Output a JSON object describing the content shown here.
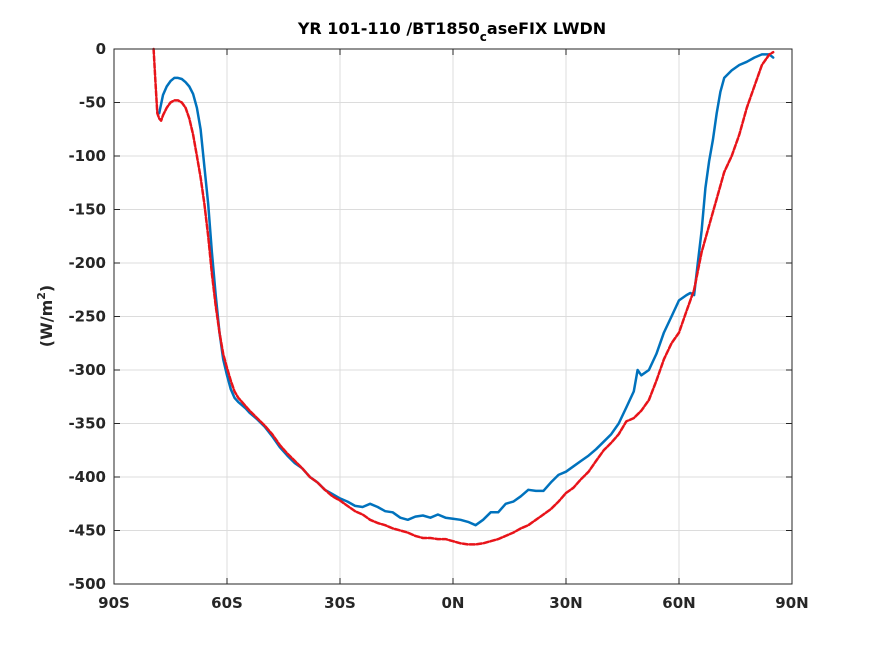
{
  "chart_data": {
    "type": "line",
    "title": "YR 101-110 /BT1850",
    "title_subscript": "c",
    "title_suffix": "aseFIX LWDN",
    "ylabel": "(W/m",
    "ylabel_sup": "2",
    "ylabel_close": ")",
    "xlabel": "",
    "xlim": [
      -90,
      90
    ],
    "ylim": [
      -500,
      0
    ],
    "grid": true,
    "x_ticks": [
      -90,
      -60,
      -30,
      0,
      30,
      60,
      90
    ],
    "x_tick_labels": [
      "90S",
      "60S",
      "30S",
      "0N",
      "30N",
      "60N",
      "90N"
    ],
    "y_ticks": [
      0,
      -50,
      -100,
      -150,
      -200,
      -250,
      -300,
      -350,
      -400,
      -450,
      -500
    ],
    "y_tick_labels": [
      "0",
      "-50",
      "-100",
      "-150",
      "-200",
      "-250",
      "-300",
      "-350",
      "-400",
      "-450",
      "-500"
    ],
    "series": [
      {
        "color": "#0072BD",
        "dash": "solid",
        "x": [
          -78,
          -77,
          -76,
          -75,
          -74,
          -73,
          -72,
          -71,
          -70,
          -69,
          -68,
          -67,
          -66,
          -65,
          -64,
          -63,
          -62,
          -61,
          -60,
          -59,
          -58,
          -57,
          -56,
          -55,
          -54,
          -52,
          -50,
          -48,
          -46,
          -44,
          -42,
          -40,
          -38,
          -36,
          -34,
          -32,
          -30,
          -28,
          -26,
          -24,
          -22,
          -20,
          -18,
          -16,
          -14,
          -12,
          -10,
          -8,
          -6,
          -4,
          -2,
          0,
          2,
          4,
          6,
          8,
          10,
          12,
          14,
          16,
          18,
          20,
          22,
          24,
          26,
          28,
          30,
          32,
          34,
          36,
          38,
          40,
          42,
          44,
          46,
          48,
          49,
          50,
          52,
          54,
          56,
          58,
          60,
          62,
          63,
          64,
          65,
          66,
          67,
          68,
          69,
          70,
          71,
          72,
          74,
          76,
          78,
          80,
          82,
          84,
          85
        ],
        "y": [
          -60,
          -43,
          -35,
          -30,
          -27,
          -27,
          -28,
          -31,
          -35,
          -42,
          -55,
          -75,
          -110,
          -145,
          -190,
          -230,
          -265,
          -290,
          -305,
          -318,
          -326,
          -330,
          -333,
          -336,
          -340,
          -346,
          -353,
          -362,
          -372,
          -380,
          -387,
          -392,
          -400,
          -405,
          -412,
          -416,
          -420,
          -423,
          -427,
          -428,
          -425,
          -428,
          -432,
          -433,
          -438,
          -440,
          -437,
          -436,
          -438,
          -435,
          -438,
          -439,
          -440,
          -442,
          -445,
          -440,
          -433,
          -433,
          -425,
          -423,
          -418,
          -412,
          -413,
          -413,
          -405,
          -398,
          -395,
          -390,
          -385,
          -380,
          -374,
          -367,
          -360,
          -350,
          -335,
          -320,
          -300,
          -305,
          -300,
          -285,
          -265,
          -250,
          -235,
          -230,
          -228,
          -230,
          -200,
          -170,
          -130,
          -105,
          -85,
          -60,
          -40,
          -27,
          -20,
          -15,
          -12,
          -8,
          -5,
          -5,
          -8
        ]
      },
      {
        "color": "#E8141A",
        "dash": "dashed",
        "x": [
          -79.5,
          -79,
          -78.5,
          -78,
          -77.5,
          -77,
          -76,
          -75,
          -74,
          -73,
          -72,
          -71,
          -70,
          -69,
          -68,
          -67,
          -66,
          -65,
          -64,
          -63,
          -62,
          -61,
          -60,
          -59,
          -58,
          -57,
          -56,
          -55,
          -54,
          -52,
          -50,
          -48,
          -46,
          -44,
          -42,
          -40,
          -38,
          -36,
          -34,
          -32,
          -30,
          -28,
          -26,
          -24,
          -22,
          -20,
          -18,
          -16,
          -14,
          -12,
          -10,
          -8,
          -6,
          -4,
          -2,
          0,
          2,
          4,
          6,
          8,
          10,
          12,
          14,
          16,
          18,
          20,
          22,
          24,
          26,
          28,
          30,
          32,
          34,
          36,
          38,
          40,
          42,
          44,
          46,
          48,
          50,
          52,
          54,
          56,
          58,
          60,
          62,
          64,
          66,
          68,
          70,
          72,
          74,
          76,
          78,
          80,
          82,
          84,
          85
        ],
        "y": [
          0,
          -30,
          -60,
          -65,
          -67,
          -62,
          -55,
          -50,
          -48,
          -48,
          -50,
          -55,
          -65,
          -80,
          -100,
          -120,
          -145,
          -175,
          -210,
          -240,
          -265,
          -285,
          -298,
          -310,
          -320,
          -326,
          -330,
          -334,
          -338,
          -345,
          -352,
          -360,
          -370,
          -378,
          -385,
          -392,
          -400,
          -405,
          -412,
          -418,
          -422,
          -427,
          -432,
          -435,
          -440,
          -443,
          -445,
          -448,
          -450,
          -452,
          -455,
          -457,
          -457,
          -458,
          -458,
          -460,
          -462,
          -463,
          -463,
          -462,
          -460,
          -458,
          -455,
          -452,
          -448,
          -445,
          -440,
          -435,
          -430,
          -423,
          -415,
          -410,
          -402,
          -395,
          -385,
          -375,
          -368,
          -360,
          -348,
          -345,
          -338,
          -328,
          -310,
          -290,
          -275,
          -265,
          -245,
          -225,
          -190,
          -165,
          -140,
          -115,
          -100,
          -80,
          -55,
          -35,
          -15,
          -5,
          -3
        ]
      }
    ]
  }
}
